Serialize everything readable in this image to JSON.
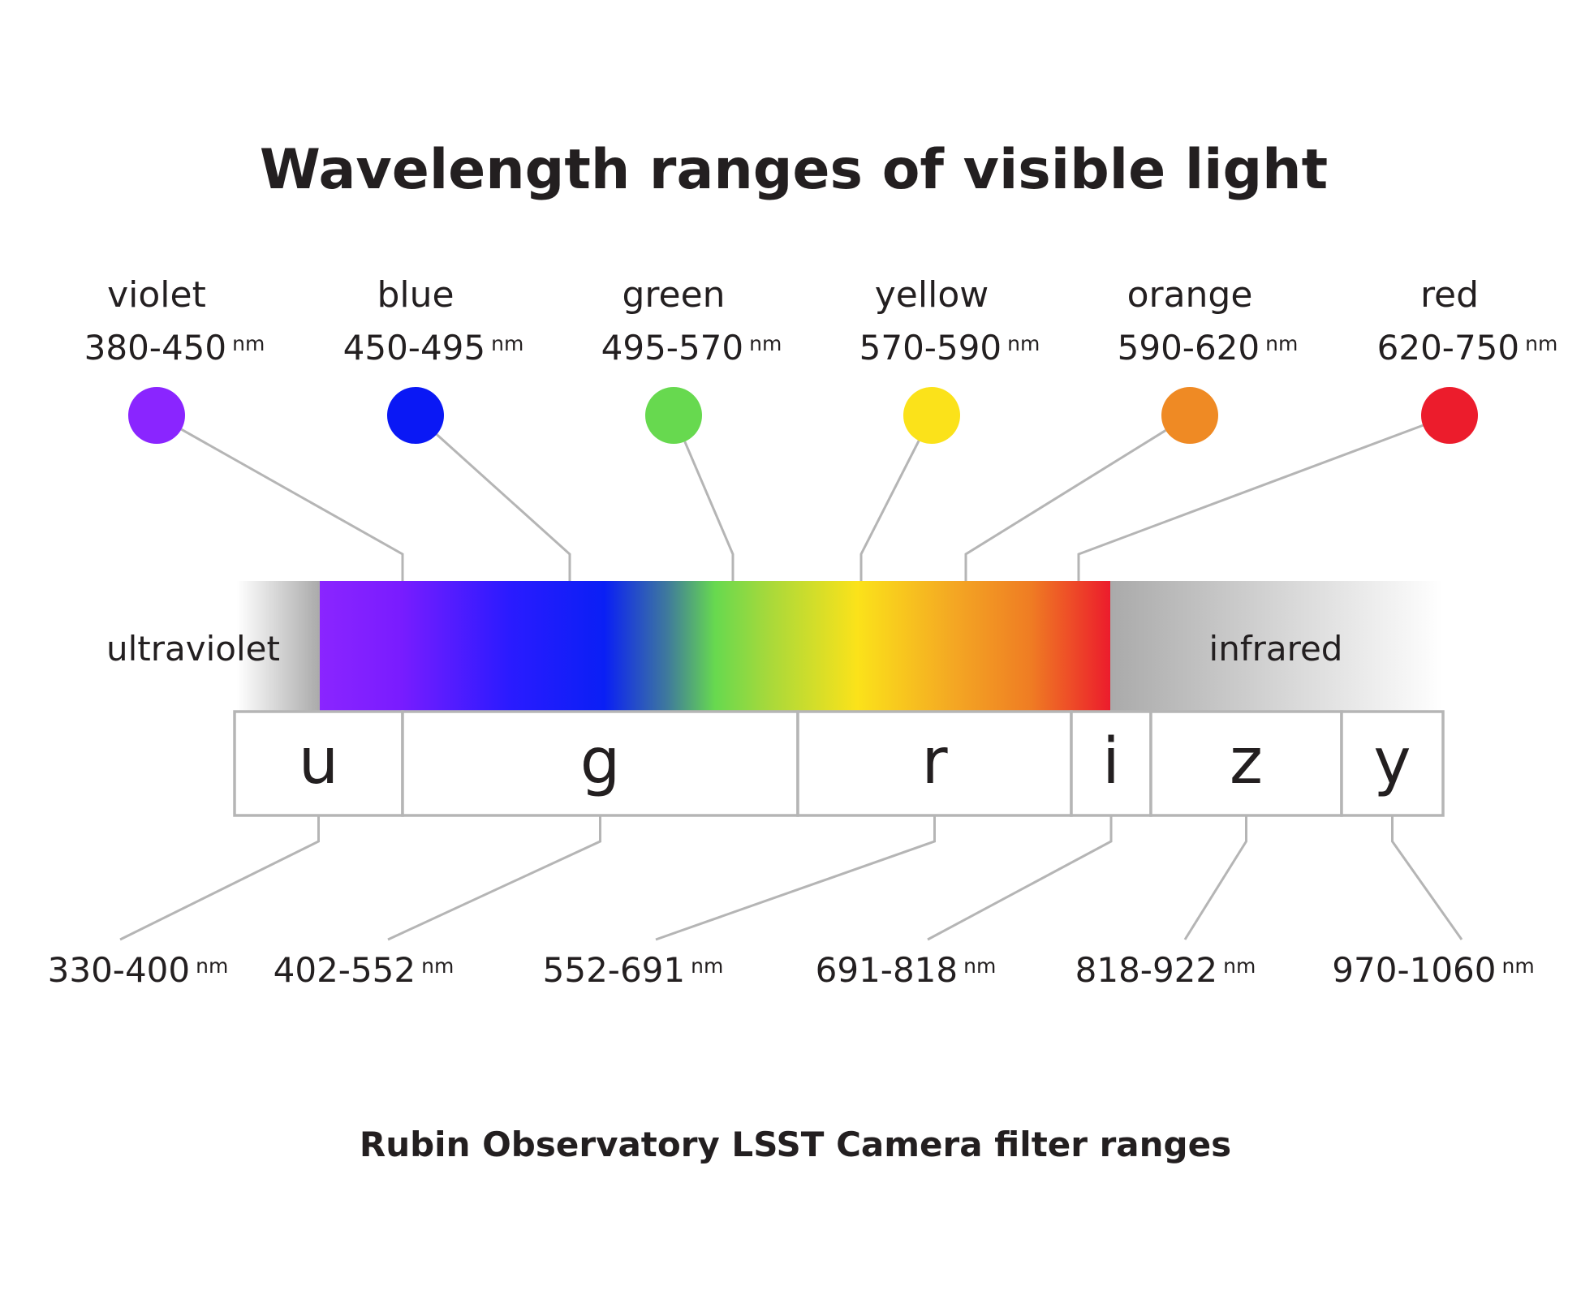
{
  "title": "Wavelength ranges of visible light",
  "unit": "nm",
  "colors": [
    {
      "name": "violet",
      "range": "380-450",
      "hex": "#8a25ff"
    },
    {
      "name": "blue",
      "range": "450-495",
      "hex": "#0a18f5"
    },
    {
      "name": "green",
      "range": "495-570",
      "hex": "#67d94f"
    },
    {
      "name": "yellow",
      "range": "570-590",
      "hex": "#fbe21a"
    },
    {
      "name": "orange",
      "range": "590-620",
      "hex": "#ef8a24"
    },
    {
      "name": "red",
      "range": "620-750",
      "hex": "#ec1c2c"
    }
  ],
  "regions": {
    "ultraviolet": "ultraviolet",
    "infrared": "infrared"
  },
  "filters": [
    {
      "letter": "u",
      "range": "330-400"
    },
    {
      "letter": "g",
      "range": "402-552"
    },
    {
      "letter": "r",
      "range": "552-691"
    },
    {
      "letter": "i",
      "range": "691-818"
    },
    {
      "letter": "z",
      "range": "818-922"
    },
    {
      "letter": "y",
      "range": "970-1060"
    }
  ],
  "caption": "Rubin Observatory LSST Camera filter ranges"
}
